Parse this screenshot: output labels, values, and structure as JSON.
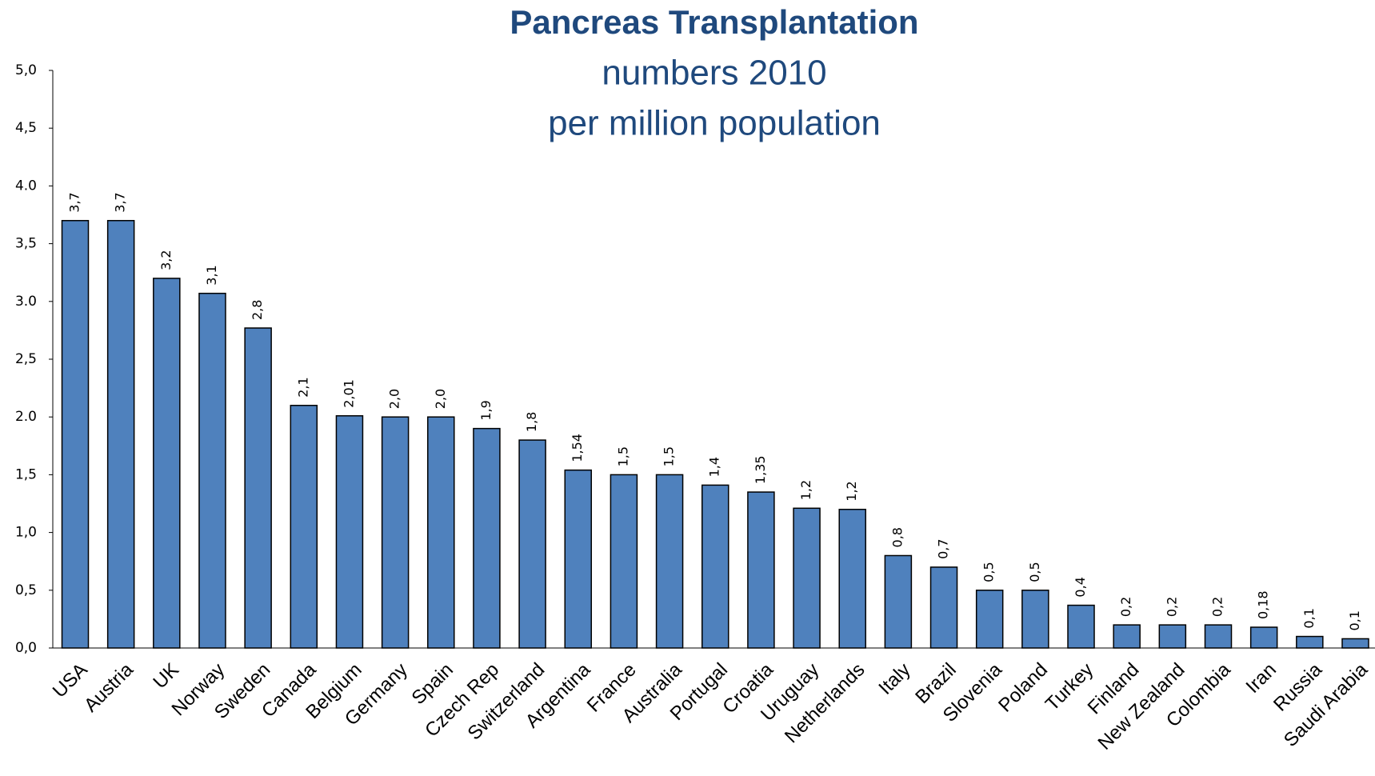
{
  "chart_data": {
    "type": "bar",
    "title": "Pancreas Transplantation",
    "subtitle": [
      "numbers 2010",
      "per million population"
    ],
    "categories": [
      "USA",
      "Austria",
      "UK",
      "Norway",
      "Sweden",
      "Canada",
      "Belgium",
      "Germany",
      "Spain",
      "Czech Rep",
      "Switzerland",
      "Argentina",
      "France",
      "Australia",
      "Portugal",
      "Croatia",
      "Uruguay",
      "Netherlands",
      "Italy",
      "Brazil",
      "Slovenia",
      "Poland",
      "Turkey",
      "Finland",
      "New Zealand",
      "Colombia",
      "Iran",
      "Russia",
      "Saudi Arabia"
    ],
    "values": [
      3.7,
      3.7,
      3.2,
      3.07,
      2.77,
      2.1,
      2.01,
      2.0,
      2.0,
      1.9,
      1.8,
      1.54,
      1.5,
      1.5,
      1.41,
      1.35,
      1.21,
      1.2,
      0.8,
      0.7,
      0.5,
      0.5,
      0.37,
      0.2,
      0.2,
      0.2,
      0.18,
      0.1,
      0.08
    ],
    "value_labels": [
      "3,7",
      "3,7",
      "3,2",
      "3,1",
      "2,8",
      "2,1",
      "2,01",
      "2,0",
      "2,0",
      "1,9",
      "1,8",
      "1,54",
      "1,5",
      "1,5",
      "1,4",
      "1,35",
      "1,2",
      "1,2",
      "0,8",
      "0,7",
      "0,5",
      "0,5",
      "0,4",
      "0,2",
      "0,2",
      "0,2",
      "0,18",
      "0,1",
      "0,1"
    ],
    "color": "#4f81bd",
    "ylim": [
      0,
      5
    ],
    "yticks": [
      {
        "value": 0,
        "label": "0,0"
      },
      {
        "value": 0.5,
        "label": "0,5"
      },
      {
        "value": 1,
        "label": "1,0"
      },
      {
        "value": 1.5,
        "label": "1,5"
      },
      {
        "value": 2,
        "label": "2.0"
      },
      {
        "value": 2.5,
        "label": "2,5"
      },
      {
        "value": 3,
        "label": "3.0"
      },
      {
        "value": 3.5,
        "label": "3,5"
      },
      {
        "value": 4,
        "label": "4.0"
      },
      {
        "value": 4.5,
        "label": "4,5"
      },
      {
        "value": 5,
        "label": "5,0"
      }
    ],
    "grid": false
  }
}
